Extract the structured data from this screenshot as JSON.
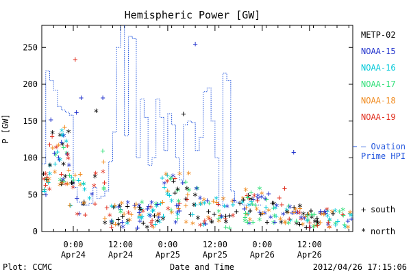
{
  "chart_data": {
    "type": "scatter",
    "title": "Hemispheric Power [GW]",
    "ylabel": "P [GW]",
    "xlabel": "Date and Time",
    "x_range": [
      "2012-04-23 16:00",
      "2012-04-26 23:00"
    ],
    "ylim": [
      0,
      280
    ],
    "y_ticks": [
      0,
      50,
      100,
      150,
      200,
      250
    ],
    "x_ticks": [
      {
        "time": "2012-04-24 00:00",
        "line1": "0:00",
        "line2": "Apr24"
      },
      {
        "time": "2012-04-24 12:00",
        "line1": "12:00",
        "line2": "Apr24"
      },
      {
        "time": "2012-04-25 00:00",
        "line1": "0:00",
        "line2": "Apr25"
      },
      {
        "time": "2012-04-25 12:00",
        "line1": "12:00",
        "line2": "Apr25"
      },
      {
        "time": "2012-04-26 00:00",
        "line1": "0:00",
        "line2": "Apr26"
      },
      {
        "time": "2012-04-26 12:00",
        "line1": "12:00",
        "line2": "Apr26"
      }
    ],
    "grid": false,
    "legend_placement": "right",
    "legend": [
      {
        "name": "METP-02",
        "color": "#000000"
      },
      {
        "name": "NOAA-15",
        "color": "#2233cc"
      },
      {
        "name": "NOAA-16",
        "color": "#00c8d8"
      },
      {
        "name": "NOAA-17",
        "color": "#33e07a"
      },
      {
        "name": "NOAA-18",
        "color": "#f08a1e"
      },
      {
        "name": "NOAA-19",
        "color": "#e03020"
      }
    ],
    "ovation_label": [
      "— Ovation",
      "Prime HPI"
    ],
    "ovation_color": "#2255dd",
    "marker_key": [
      {
        "marker": "+",
        "label": "south"
      },
      {
        "marker": "*",
        "label": "north"
      }
    ],
    "ovation_series": [
      [
        0,
        92
      ],
      [
        1,
        218
      ],
      [
        2,
        205
      ],
      [
        3,
        192
      ],
      [
        4,
        170
      ],
      [
        5,
        165
      ],
      [
        6,
        162
      ],
      [
        7,
        158
      ],
      [
        8,
        60
      ],
      [
        9,
        40
      ],
      [
        10,
        36
      ],
      [
        11,
        36
      ],
      [
        12,
        38
      ],
      [
        13,
        60
      ],
      [
        14,
        45
      ],
      [
        15,
        48
      ],
      [
        16,
        55
      ],
      [
        17,
        95
      ],
      [
        18,
        135
      ],
      [
        19,
        250
      ],
      [
        20,
        290
      ],
      [
        21,
        130
      ],
      [
        22,
        265
      ],
      [
        23,
        262
      ],
      [
        24,
        100
      ],
      [
        25,
        180
      ],
      [
        26,
        155
      ],
      [
        27,
        90
      ],
      [
        28,
        100
      ],
      [
        29,
        180
      ],
      [
        30,
        155
      ],
      [
        31,
        110
      ],
      [
        32,
        160
      ],
      [
        33,
        145
      ],
      [
        34,
        100
      ],
      [
        35,
        70
      ],
      [
        36,
        145
      ],
      [
        37,
        150
      ],
      [
        38,
        148
      ],
      [
        39,
        110
      ],
      [
        40,
        128
      ],
      [
        41,
        190
      ],
      [
        42,
        195
      ],
      [
        43,
        150
      ],
      [
        44,
        100
      ],
      [
        45,
        35
      ],
      [
        46,
        215
      ],
      [
        47,
        205
      ],
      [
        48,
        55
      ],
      [
        49,
        40
      ],
      [
        50,
        38
      ],
      [
        51,
        36
      ],
      [
        52,
        36
      ],
      [
        53,
        36
      ],
      [
        54,
        36
      ],
      [
        55,
        36
      ]
    ],
    "sample_points": [
      {
        "sat": "NOAA-15",
        "hemi": "south",
        "x": 2.3,
        "y": 152
      },
      {
        "sat": "NOAA-15",
        "hemi": "south",
        "x": 5.0,
        "y": 122
      },
      {
        "sat": "NOAA-15",
        "hemi": "south",
        "x": 8.8,
        "y": 162
      },
      {
        "sat": "NOAA-15",
        "hemi": "south",
        "x": 10.0,
        "y": 182
      },
      {
        "sat": "NOAA-15",
        "hemi": "south",
        "x": 15.5,
        "y": 182
      },
      {
        "sat": "NOAA-15",
        "hemi": "south",
        "x": 39.0,
        "y": 255
      },
      {
        "sat": "NOAA-15",
        "hemi": "south",
        "x": 64.0,
        "y": 108
      },
      {
        "sat": "NOAA-19",
        "hemi": "south",
        "x": 8.5,
        "y": 234
      },
      {
        "sat": "NOAA-19",
        "hemi": "south",
        "x": 2.0,
        "y": 118
      },
      {
        "sat": "NOAA-18",
        "hemi": "south",
        "x": 5.8,
        "y": 142
      },
      {
        "sat": "METP-02",
        "hemi": "north",
        "x": 13.8,
        "y": 163
      },
      {
        "sat": "METP-02",
        "hemi": "south",
        "x": 36.0,
        "y": 160
      }
    ]
  },
  "footer": {
    "plot_credit": "Plot: CCMC",
    "timestamp": "2012/04/26 17:15:06"
  }
}
